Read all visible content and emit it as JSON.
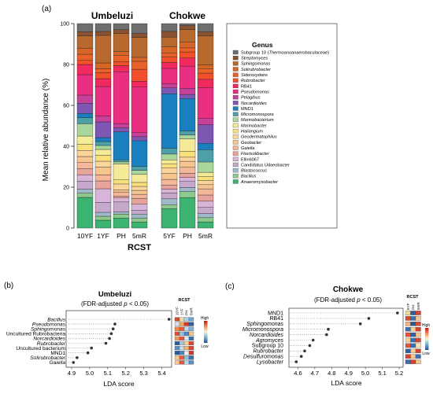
{
  "chart_data": [
    {
      "panel": "(a)",
      "type": "bar",
      "stacked": true,
      "groups": [
        "Umbeluzi",
        "Chokwe"
      ],
      "group_categories": [
        [
          "10YF",
          "1YF",
          "PH",
          "5mR"
        ],
        [
          "5YF",
          "PH",
          "5mR"
        ]
      ],
      "categories": [
        "10YF",
        "1YF",
        "PH",
        "5mR",
        "5YF",
        "PH",
        "5mR"
      ],
      "xlabel": "RCST",
      "ylabel": "Mean relative abundance (%)",
      "ylim": [
        0,
        100
      ],
      "yticks": [
        0,
        20,
        40,
        60,
        80,
        100
      ],
      "legend_title": "Genus",
      "legend_position": "right",
      "series": [
        {
          "name": "Anaeromyxobacter",
          "color": "#3cb371",
          "values": [
            15,
            4,
            5,
            3,
            10,
            15,
            3
          ]
        },
        {
          "name": "Bacillus",
          "color": "#8dc98d",
          "values": [
            2,
            2,
            2,
            2,
            2,
            3,
            2
          ]
        },
        {
          "name": "Blastococcus",
          "color": "#9fb9c9",
          "values": [
            2,
            2,
            1,
            2,
            3,
            2,
            2
          ]
        },
        {
          "name": "Candidatus Udaeobacter",
          "color": "#c6a8cc",
          "values": [
            4,
            5,
            5,
            2,
            3,
            3,
            3
          ]
        },
        {
          "name": "Ellin6067",
          "color": "#d8b4d8",
          "values": [
            3,
            7,
            2,
            3,
            2,
            2,
            3
          ]
        },
        {
          "name": "Flavisolibacter",
          "color": "#e8a49c",
          "values": [
            3,
            4,
            1,
            3,
            2,
            2,
            3
          ]
        },
        {
          "name": "Gaiella",
          "color": "#f4b79a",
          "values": [
            3,
            3,
            2,
            2,
            3,
            3,
            3
          ]
        },
        {
          "name": "Geobacter",
          "color": "#f6c48e",
          "values": [
            3,
            4,
            1,
            2,
            3,
            3,
            2
          ]
        },
        {
          "name": "Geodermatophilus",
          "color": "#fbd59c",
          "values": [
            3,
            3,
            3,
            2,
            3,
            2,
            2
          ]
        },
        {
          "name": "Haliangium",
          "color": "#f8e07a",
          "values": [
            3,
            3,
            2,
            2,
            2,
            3,
            2
          ]
        },
        {
          "name": "Marinobacter",
          "color": "#f4ea98",
          "values": [
            4,
            3,
            8,
            4,
            2,
            6,
            2
          ]
        },
        {
          "name": "Marinobacterium",
          "color": "#a9d69b",
          "values": [
            6,
            2,
            1,
            2,
            3,
            2,
            5
          ]
        },
        {
          "name": "Micromonospora",
          "color": "#4f9fa8",
          "values": [
            3,
            2,
            1,
            2,
            3,
            2,
            6
          ]
        },
        {
          "name": "MND1",
          "color": "#1a7fbe",
          "values": [
            2,
            2,
            14,
            13,
            28,
            16,
            3
          ]
        },
        {
          "name": "Nocardioides",
          "color": "#7e57b2",
          "values": [
            5,
            8,
            2,
            2,
            3,
            2,
            9
          ]
        },
        {
          "name": "Pelagibus",
          "color": "#c5419a",
          "values": [
            4,
            3,
            2,
            2,
            2,
            3,
            3
          ]
        },
        {
          "name": "Pseudomonas",
          "color": "#ea2f83",
          "values": [
            10,
            15,
            26,
            23,
            8,
            11,
            15
          ]
        },
        {
          "name": "RB41",
          "color": "#f0295e",
          "values": [
            5,
            4,
            3,
            3,
            3,
            4,
            4
          ]
        },
        {
          "name": "Rubrobacter",
          "color": "#f24f2b",
          "values": [
            2,
            3,
            2,
            6,
            3,
            3,
            3
          ]
        },
        {
          "name": "Sideroxydans",
          "color": "#e8622a",
          "values": [
            3,
            2,
            3,
            4,
            2,
            2,
            2
          ]
        },
        {
          "name": "Solirubrobacter",
          "color": "#d56626",
          "values": [
            3,
            3,
            2,
            2,
            3,
            3,
            2
          ]
        },
        {
          "name": "Sphingomonas",
          "color": "#b8692e",
          "values": [
            6,
            14,
            9,
            10,
            5,
            6,
            14
          ]
        },
        {
          "name": "Streptomyces",
          "color": "#8a5230",
          "values": [
            2,
            2,
            2,
            2,
            3,
            2,
            2
          ]
        },
        {
          "name": "Subgroup 10 (Thermoanoanaerobaculaceae)",
          "color": "#6e6e6e",
          "values": [
            4,
            4,
            3,
            5,
            4,
            1,
            4
          ]
        }
      ]
    },
    {
      "panel": "(b)",
      "type": "scatter",
      "title": "Umbeluzi",
      "subtitle_pre": "(FDR-adjusted ",
      "subtitle_p": "p",
      "subtitle_post": " < 0.05)",
      "xlabel": "LDA score",
      "xlim": [
        4.9,
        5.45
      ],
      "xticks": [
        "4.9",
        "5.0",
        "5.1",
        "5.2",
        "5.3",
        "5.4"
      ],
      "labels": [
        "Bacillus",
        "Pseudomonas",
        "Sphingomonas",
        "Uncultured Rubrobacteria",
        "Norcardioides",
        "Rubrobacter",
        "Uncultured bacterium",
        "MND1",
        "Solirubrobacter",
        "Gaiella"
      ],
      "italic": [
        true,
        true,
        true,
        false,
        true,
        true,
        false,
        false,
        true,
        true
      ],
      "x": [
        5.44,
        5.14,
        5.13,
        5.12,
        5.11,
        5.09,
        5.01,
        4.99,
        4.93,
        4.91
      ],
      "heatmap": {
        "title": "RCST",
        "columns": [
          "10YF",
          "1YF",
          "PH",
          "5mR"
        ],
        "legend_high": "High",
        "legend_low": "Low",
        "colors": [
          [
            "#d8492f",
            "#f7d9a0",
            "#a9cfe6",
            "#6ea8d2"
          ],
          [
            "#cfe3f0",
            "#f5a35b",
            "#d4392b",
            "#2f5f9e"
          ],
          [
            "#f08a4a",
            "#e85a33",
            "#bfd9ea",
            "#7fb2d8"
          ],
          [
            "#e24a31",
            "#8fc2dd",
            "#4b86c0",
            "#f4c58d"
          ],
          [
            "#f29a56",
            "#e8553a",
            "#e1edf4",
            "#3a6fb0"
          ],
          [
            "#2f5f9e",
            "#a5cbe3",
            "#f8d39a",
            "#e0452f"
          ],
          [
            "#5a90c4",
            "#c6dfee",
            "#f4b678",
            "#d8492f"
          ],
          [
            "#2c5a97",
            "#4c87c1",
            "#e9f2f6",
            "#cf3a2c"
          ],
          [
            "#f6c68e",
            "#e85c38",
            "#8ebfdc",
            "#3a6fb0"
          ],
          [
            "#f6c89a",
            "#e05b3a",
            "#b9d7ea",
            "#5a90c4"
          ]
        ]
      }
    },
    {
      "panel": "(c)",
      "type": "scatter",
      "title": "Chokwe",
      "subtitle_pre": "(FDR-adjusted ",
      "subtitle_p": "p",
      "subtitle_post": " < 0.05)",
      "xlabel": "LDA score",
      "xlim": [
        4.57,
        5.2
      ],
      "xticks": [
        "4.6",
        "4.7",
        "4.8",
        "4.9",
        "5.0",
        "5.1",
        "5.2"
      ],
      "labels": [
        "MND1",
        "RB41",
        "Sphingomonas",
        "Micromonospora",
        "Norcardioides",
        "Agromyces",
        "Subgroup 10",
        "Rubrobacter",
        "Desulfuromonas",
        "Lysobacter"
      ],
      "italic": [
        false,
        false,
        true,
        true,
        true,
        true,
        false,
        true,
        true,
        true
      ],
      "x": [
        5.19,
        5.02,
        4.97,
        4.78,
        4.77,
        4.69,
        4.67,
        4.64,
        4.62,
        4.59
      ],
      "heatmap": {
        "title": "RCST",
        "columns": [
          "5YF",
          "PH",
          "5mR"
        ],
        "legend_high": "High",
        "legend_low": "Low",
        "colors": [
          [
            "#f4d59a",
            "#2f5f9e",
            "#d6442f"
          ],
          [
            "#d8492f",
            "#3b6fb0",
            "#f6c890"
          ],
          [
            "#f2b47a",
            "#2c5a97",
            "#e04a33"
          ],
          [
            "#3a6fb0",
            "#f6cf96",
            "#d8412d"
          ],
          [
            "#e85336",
            "#2f5f9e",
            "#f4c58d"
          ],
          [
            "#f6cf96",
            "#3a6fb0",
            "#d8412d"
          ],
          [
            "#e5553a",
            "#3a6fb0",
            "#f8e3b2"
          ],
          [
            "#2f5f9e",
            "#f6cf96",
            "#d8412d"
          ],
          [
            "#d8412d",
            "#f4c58d",
            "#3a6fb0"
          ],
          [
            "#3a6fb0",
            "#d8412d",
            "#f4c58d"
          ]
        ]
      }
    }
  ]
}
